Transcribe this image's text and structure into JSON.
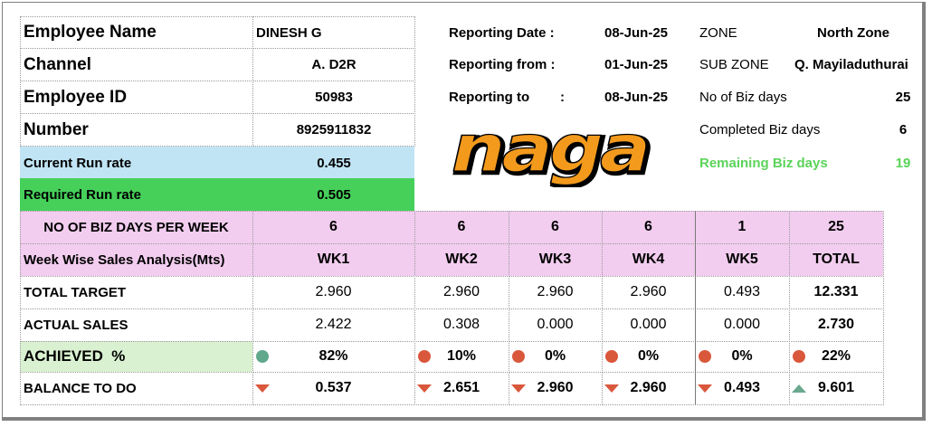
{
  "employee": {
    "name_label": "Employee Name",
    "name_value": "DINESH G",
    "channel_label": "Channel",
    "channel_value": "A. D2R",
    "id_label": "Employee ID",
    "id_value": "50983",
    "number_label": "Number",
    "number_value": "8925911832",
    "current_rr_label": "Current Run rate",
    "current_rr_value": "0.455",
    "required_rr_label": "Required Run rate",
    "required_rr_value": "0.505"
  },
  "reporting": {
    "date_label": "Reporting Date :",
    "date_value": "08-Jun-25",
    "from_label": "Reporting from :",
    "from_value": "01-Jun-25",
    "to_label": "Reporting to",
    "to_colon": ":",
    "to_value": "08-Jun-25"
  },
  "zone": {
    "zone_label": "ZONE",
    "zone_value": "North Zone",
    "subzone_label": "SUB ZONE",
    "subzone_value": "Q. Mayiladuthurai",
    "biz_days_label": "No of Biz days",
    "biz_days_value": "25",
    "completed_label": "Completed Biz days",
    "completed_value": "6",
    "remaining_label": "Remaining Biz days",
    "remaining_value": "19"
  },
  "logo": {
    "text": "naga"
  },
  "table": {
    "days_label": "NO OF BIZ DAYS PER WEEK",
    "days": [
      "6",
      "6",
      "6",
      "6",
      "1",
      "25"
    ],
    "header_label": "Week Wise Sales Analysis(Mts)",
    "weeks": [
      "WK1",
      "WK2",
      "WK3",
      "WK4",
      "WK5",
      "TOTAL"
    ],
    "target_label": "TOTAL TARGET",
    "target": [
      "2.960",
      "2.960",
      "2.960",
      "2.960",
      "0.493",
      "12.331"
    ],
    "actual_label": "ACTUAL SALES",
    "actual": [
      "2.422",
      "0.308",
      "0.000",
      "0.000",
      "0.000",
      "2.730"
    ],
    "achieved_label": "ACHIEVED  %",
    "achieved": [
      "82%",
      "10%",
      "0%",
      "0%",
      "0%",
      "22%"
    ],
    "achieved_status": [
      "good",
      "bad",
      "bad",
      "bad",
      "bad",
      "bad"
    ],
    "balance_label": "BALANCE TO DO",
    "balance": [
      "0.537",
      "2.651",
      "2.960",
      "2.960",
      "0.493",
      "9.601"
    ],
    "balance_trend": [
      "down",
      "down",
      "down",
      "down",
      "down",
      "up"
    ]
  },
  "colors": {
    "current_rr_bg": "#c0e4f4",
    "required_rr_bg": "#46d05a",
    "header_bg": "#f2cdef",
    "achieved_bg": "#d9f1d1",
    "remaining_text": "#5bd35a",
    "good_dot": "#5fa88c",
    "bad_dot": "#d9573b"
  }
}
